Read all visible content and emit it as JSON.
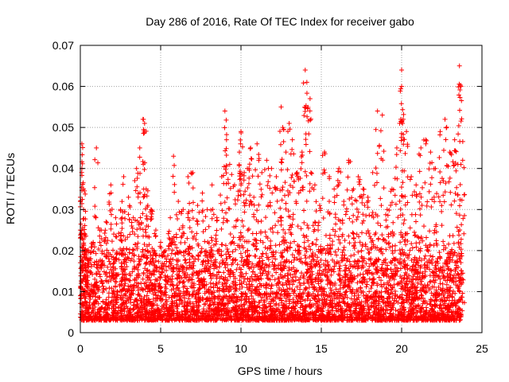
{
  "chart_data": {
    "type": "scatter",
    "title": "Day 286 of 2016, Rate Of TEC Index for receiver gabo",
    "xlabel": "GPS time / hours",
    "ylabel": "ROTI / TECUs",
    "xlim": [
      0,
      25
    ],
    "ylim": [
      0,
      0.07
    ],
    "grid": true,
    "marker": "+",
    "colors": {
      "points": "#ff0000",
      "grid": "#a0a0a0",
      "axes": "#000000"
    },
    "x_ticks": [
      "0",
      "5",
      "10",
      "15",
      "20",
      "25"
    ],
    "y_ticks": [
      "0",
      "0.01",
      "0.02",
      "0.03",
      "0.04",
      "0.05",
      "0.06",
      "0.07"
    ],
    "x_tick_values": [
      0,
      5,
      10,
      15,
      20,
      25
    ],
    "y_tick_values": [
      0,
      0.01,
      0.02,
      0.03,
      0.04,
      0.05,
      0.06,
      0.07
    ],
    "series": [
      {
        "name": "ROTI",
        "x": [
          0.0,
          0.1,
          0.1,
          0.2,
          0.2,
          0.3,
          0.4,
          0.5,
          0.8,
          1.0,
          1.3,
          1.6,
          1.9,
          2.2,
          2.5,
          2.7,
          3.0,
          3.3,
          3.5,
          3.7,
          3.9,
          4.0,
          4.1,
          4.2,
          4.4,
          4.7,
          5.0,
          5.3,
          5.6,
          5.8,
          6.1,
          6.4,
          6.7,
          7.0,
          7.3,
          7.6,
          7.9,
          8.2,
          8.5,
          8.8,
          9.0,
          9.1,
          9.3,
          9.6,
          9.9,
          10.0,
          10.2,
          10.4,
          10.6,
          10.8,
          11.0,
          11.3,
          11.6,
          11.9,
          12.2,
          12.5,
          12.6,
          12.8,
          13.0,
          13.2,
          13.5,
          13.8,
          14.0,
          14.1,
          14.3,
          14.6,
          14.9,
          15.2,
          15.5,
          15.8,
          16.1,
          16.4,
          16.7,
          17.0,
          17.3,
          17.6,
          17.9,
          18.2,
          18.5,
          18.8,
          19.1,
          19.4,
          19.7,
          20.0,
          20.0,
          20.1,
          20.3,
          20.6,
          20.9,
          21.2,
          21.5,
          21.8,
          22.1,
          22.4,
          22.7,
          23.0,
          23.3,
          23.5,
          23.6,
          23.7,
          23.8
        ],
        "y": [
          0.025,
          0.046,
          0.04,
          0.035,
          0.03,
          0.024,
          0.02,
          0.018,
          0.022,
          0.045,
          0.025,
          0.027,
          0.036,
          0.028,
          0.03,
          0.038,
          0.033,
          0.028,
          0.04,
          0.045,
          0.052,
          0.051,
          0.035,
          0.031,
          0.03,
          0.025,
          0.022,
          0.02,
          0.028,
          0.043,
          0.032,
          0.03,
          0.038,
          0.039,
          0.031,
          0.034,
          0.03,
          0.036,
          0.028,
          0.038,
          0.054,
          0.047,
          0.041,
          0.036,
          0.044,
          0.049,
          0.039,
          0.04,
          0.045,
          0.033,
          0.046,
          0.039,
          0.042,
          0.04,
          0.038,
          0.055,
          0.05,
          0.044,
          0.051,
          0.047,
          0.039,
          0.044,
          0.064,
          0.061,
          0.057,
          0.036,
          0.031,
          0.044,
          0.038,
          0.035,
          0.04,
          0.032,
          0.042,
          0.035,
          0.038,
          0.035,
          0.033,
          0.039,
          0.054,
          0.053,
          0.03,
          0.035,
          0.045,
          0.064,
          0.06,
          0.052,
          0.049,
          0.038,
          0.036,
          0.045,
          0.047,
          0.044,
          0.04,
          0.049,
          0.052,
          0.044,
          0.047,
          0.041,
          0.065,
          0.06,
          0.042
        ],
        "noise_floor_range": [
          0.003,
          0.025
        ]
      }
    ]
  }
}
